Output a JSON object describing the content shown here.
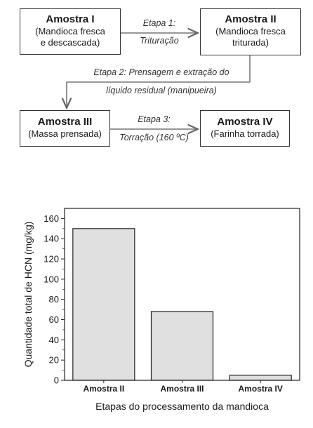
{
  "diagram": {
    "boxes": [
      {
        "title": "Amostra I",
        "desc": [
          "(Mandioca fresca",
          "e descascada)"
        ]
      },
      {
        "title": "Amostra II",
        "desc": [
          "(Mandioca fresca",
          "triturada)"
        ]
      },
      {
        "title": "Amostra III",
        "desc": [
          "(Massa prensada)"
        ]
      },
      {
        "title": "Amostra IV",
        "desc": [
          "(Farinha torrada)"
        ]
      }
    ],
    "steps": [
      {
        "line1": "Etapa 1:",
        "line2": "Trituração"
      },
      {
        "line1": "Etapa 2: Prensagem e extração do",
        "line2": "líquido residual (manipueira)"
      },
      {
        "line1": "Etapa 3:",
        "line2": "Torração (160 ºC)"
      }
    ]
  },
  "chart_data": {
    "type": "bar",
    "categories": [
      "Amostra II",
      "Amostra III",
      "Amostra IV"
    ],
    "values": [
      150,
      68,
      5
    ],
    "title": "",
    "xlabel": "Etapas do processamento da mandioca",
    "ylabel": "Quantidade total de HCN (mg/kg)",
    "ylim": [
      0,
      170
    ],
    "yticks": [
      0,
      20,
      40,
      60,
      80,
      100,
      120,
      140,
      160
    ],
    "grid": false,
    "bar_color": "#e0e0e0"
  }
}
